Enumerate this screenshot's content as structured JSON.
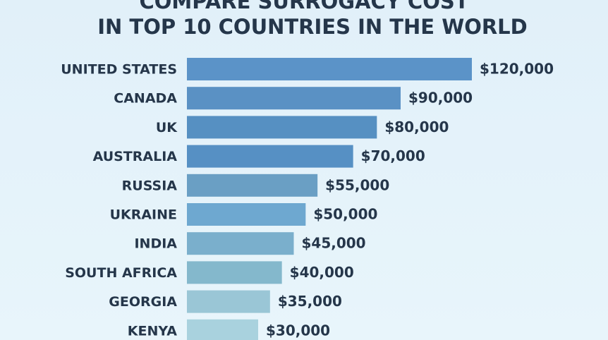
{
  "chart_data": {
    "type": "bar",
    "title": [
      "COMPARE SURROGACY COST",
      "IN TOP 10 COUNTRIES IN THE WORLD"
    ],
    "categories": [
      "UNITED STATES",
      "CANADA",
      "UK",
      "AUSTRALIA",
      "RUSSIA",
      "UKRAINE",
      "INDIA",
      "SOUTH AFRICA",
      "GEORGIA",
      "KENYA"
    ],
    "values": [
      120000,
      90000,
      80000,
      70000,
      55000,
      50000,
      45000,
      40000,
      35000,
      30000
    ],
    "value_labels": [
      "$120,000",
      "$90,000",
      "$80,000",
      "$70,000",
      "$55,000",
      "$50,000",
      "$45,000",
      "$40,000",
      "$35,000",
      "$30,000"
    ],
    "colors": [
      "#5b93c8",
      "#5a91c4",
      "#5690c2",
      "#5690c4",
      "#6a9fc4",
      "#6ea8d0",
      "#7aafcc",
      "#84b8cc",
      "#9ac6d6",
      "#a9d2de"
    ]
  }
}
